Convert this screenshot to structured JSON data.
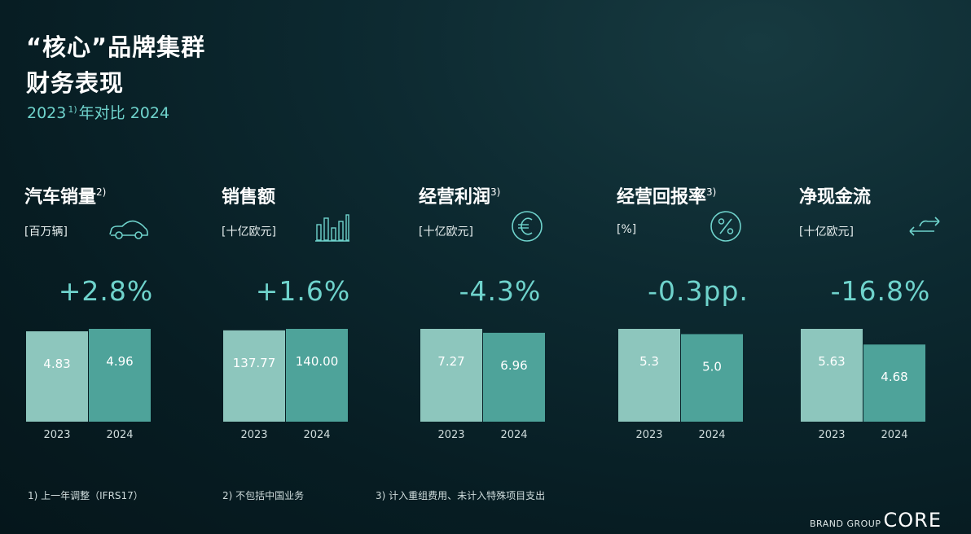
{
  "title_line1": "“核心”品牌集群",
  "title_line2": "财务表现",
  "subtitle": {
    "part1": "2023",
    "sup": "1)",
    "part2": "年对比 2024"
  },
  "colors": {
    "bar_2023": "#8dc6bd",
    "bar_2024": "#4ea39a",
    "accent": "#6fd3cc"
  },
  "metrics": [
    {
      "name": "汽车销量",
      "note": "2)",
      "unit": "[百万辆]",
      "icon": "car-icon",
      "change": "+2.8%"
    },
    {
      "name": "销售额",
      "note": "",
      "unit": "[十亿欧元]",
      "icon": "bar-chart-icon",
      "change": "+1.6%"
    },
    {
      "name": "经营利润",
      "note": "3)",
      "unit": "[十亿欧元]",
      "icon": "euro-icon",
      "change": "-4.3%"
    },
    {
      "name": "经营回报率",
      "note": "3)",
      "unit": "[%]",
      "icon": "percent-icon",
      "change": "-0.3pp."
    },
    {
      "name": "净现金流",
      "note": "",
      "unit": "[十亿欧元]",
      "icon": "exchange-icon",
      "change": "-16.8%"
    }
  ],
  "chart_data": [
    {
      "type": "bar",
      "categories": [
        "2023",
        "2024"
      ],
      "values": [
        4.83,
        4.96
      ],
      "labels": [
        "4.83",
        "4.96"
      ]
    },
    {
      "type": "bar",
      "categories": [
        "2023",
        "2024"
      ],
      "values": [
        137.77,
        140.0
      ],
      "labels": [
        "137.77",
        "140.00"
      ]
    },
    {
      "type": "bar",
      "categories": [
        "2023",
        "2024"
      ],
      "values": [
        7.27,
        6.96
      ],
      "labels": [
        "7.27",
        "6.96"
      ]
    },
    {
      "type": "bar",
      "categories": [
        "2023",
        "2024"
      ],
      "values": [
        5.3,
        5.0
      ],
      "labels": [
        "5.3",
        "5.0"
      ]
    },
    {
      "type": "bar",
      "categories": [
        "2023",
        "2024"
      ],
      "values": [
        5.63,
        4.68
      ],
      "labels": [
        "5.63",
        "4.68"
      ]
    }
  ],
  "footnotes": [
    "1) 上一年调整（IFRS17）",
    "2) 不包括中国业务",
    "3) 计入重组费用、未计入特殊项目支出"
  ],
  "brand": {
    "prefix": "BRAND GROUP",
    "name": "CORE"
  }
}
